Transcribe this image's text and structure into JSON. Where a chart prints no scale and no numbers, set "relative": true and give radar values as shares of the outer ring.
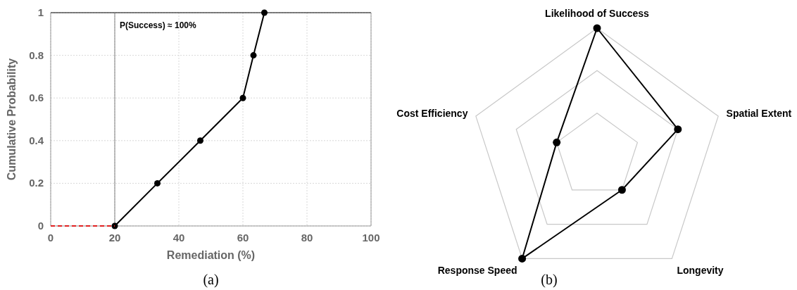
{
  "chart_data": [
    {
      "type": "line",
      "xlabel": "Remediation (%)",
      "ylabel": "Cumulative Probability",
      "xlim": [
        0,
        100
      ],
      "xticks": [
        0,
        20,
        40,
        60,
        80,
        100
      ],
      "ylim": [
        0,
        1
      ],
      "yticks": [
        0,
        0.2,
        0.4,
        0.6,
        0.8,
        1
      ],
      "grid": true,
      "series": [
        {
          "x": [
            20,
            33.3,
            46.7,
            60,
            63.3,
            66.7
          ],
          "values": [
            0,
            0.2,
            0.4,
            0.6,
            0.8,
            1
          ],
          "color": "#000000",
          "marker": "circle",
          "line_style": "solid"
        },
        {
          "x": [
            0,
            20
          ],
          "values": [
            0,
            0
          ],
          "color": "#e02020",
          "marker": "none",
          "line_style": "dashed"
        }
      ],
      "ref_lines": [
        {
          "axis": "x",
          "value": 20,
          "label": null,
          "color": "#808080"
        }
      ],
      "annotations": [
        {
          "text": "P(Success) ≈ 100%",
          "x": 20,
          "y": 1
        },
        "(a)"
      ]
    },
    {
      "type": "radar",
      "relative": true,
      "categories": [
        "Likelihood of Success",
        "Spatial Extent",
        "Longevity",
        "Response Speed",
        "Cost Efficiency"
      ],
      "series": [
        {
          "values": [
            1,
            0.667,
            0.333,
            1,
            0.333
          ],
          "color": "#000000",
          "marker": "circle"
        }
      ],
      "annotations": [
        "(b)"
      ]
    }
  ]
}
